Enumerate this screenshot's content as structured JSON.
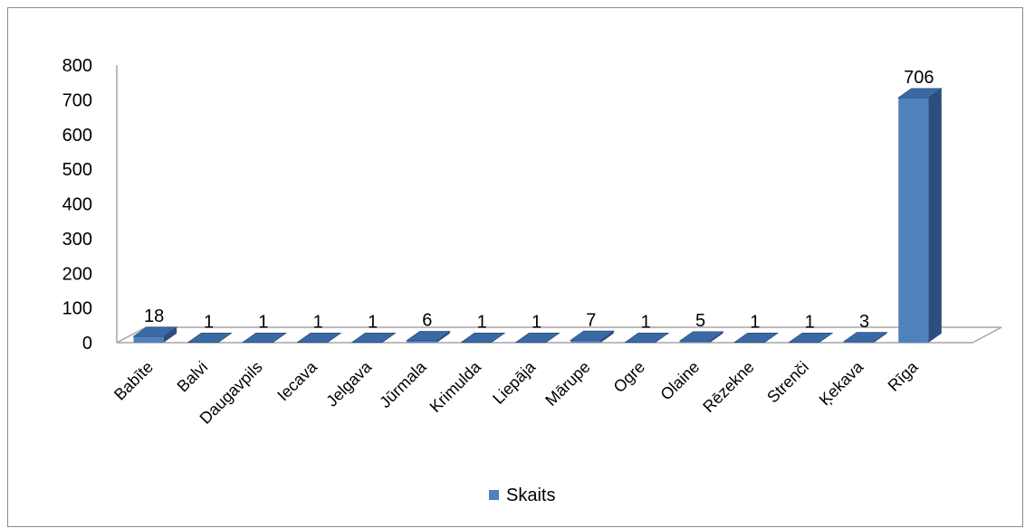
{
  "chart_data": {
    "type": "bar",
    "style": "3d-column",
    "categories": [
      "Babīte",
      "Balvi",
      "Daugavpils",
      "Iecava",
      "Jelgava",
      "Jūrmala",
      "Krimulda",
      "Liepāja",
      "Mārupe",
      "Ogre",
      "Olaine",
      "Rēzekne",
      "Strenči",
      "Ķekava",
      "Rīga"
    ],
    "series": [
      {
        "name": "Skaits",
        "values": [
          18,
          1,
          1,
          1,
          1,
          6,
          1,
          1,
          7,
          1,
          5,
          1,
          1,
          3,
          706
        ]
      }
    ],
    "data_labels": [
      "18",
      "1",
      "1",
      "1",
      "1",
      "6",
      "1",
      "1",
      "7",
      "1",
      "5",
      "1",
      "1",
      "3",
      "706"
    ],
    "ylim": [
      0,
      800
    ],
    "yticks": [
      0,
      100,
      200,
      300,
      400,
      500,
      600,
      700,
      800
    ],
    "ytick_labels": [
      "0",
      "100",
      "200",
      "300",
      "400",
      "500",
      "600",
      "700",
      "800"
    ],
    "grid": false,
    "legend": {
      "position": "bottom",
      "entries": [
        "Skaits"
      ]
    },
    "colors": {
      "front": "#4f81bd",
      "top": "#3a6aa6",
      "side": "#2e4f7e",
      "floor": "#ffffff",
      "floor_edge": "#a6a6a6"
    }
  }
}
